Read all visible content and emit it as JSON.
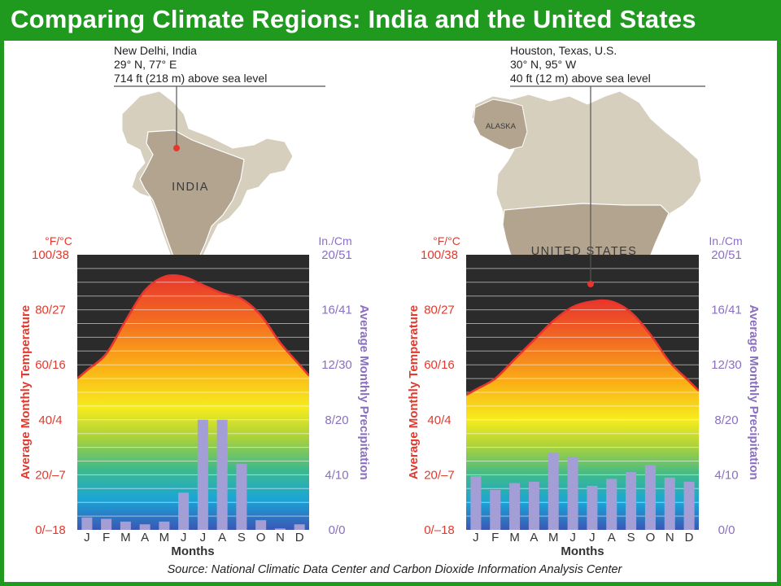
{
  "title": "Comparing Climate Regions: India and the United States",
  "source": "Source: National Climatic Data Center and Carbon Dioxide Information Analysis Center",
  "colors": {
    "title_bar": "#1f9a1f",
    "temperature": "#e8362e",
    "temperature_axis_text": "#e03a2f",
    "precipitation_axis_text": "#8a6fc0",
    "bars": "#a39fd6",
    "map_land": "#d6cfbe",
    "map_highlight": "#b2a48f",
    "plot_top": "#2b2b2b"
  },
  "chart_data": [
    {
      "type": "line",
      "panel": "india",
      "location": {
        "name": "New Delhi, India",
        "coords": "29° N, 77° E",
        "elevation": "714 ft (218 m) above sea level"
      },
      "map_label": "INDIA",
      "x": [
        "J",
        "F",
        "M",
        "A",
        "M",
        "J",
        "J",
        "A",
        "S",
        "O",
        "N",
        "D"
      ],
      "xlabel": "Months",
      "left_axis": {
        "label": "Average Monthly Temperature",
        "unit": "°F/°C",
        "ticks": [
          "0/–18",
          "20/–7",
          "40/4",
          "60/16",
          "80/27",
          "100/38"
        ],
        "ylim": [
          0,
          100
        ]
      },
      "right_axis": {
        "label": "Average Monthly Precipitation",
        "unit": "In./Cm",
        "ticks": [
          "0/0",
          "4/10",
          "8/20",
          "12/30",
          "16/41",
          "20/51"
        ],
        "ylim": [
          0,
          20
        ]
      },
      "series": [
        {
          "name": "Average Monthly Temperature",
          "axis": "left",
          "kind": "line",
          "values": [
            58,
            64,
            76,
            87,
            92,
            92,
            89,
            86,
            84,
            78,
            68,
            60
          ]
        },
        {
          "name": "Average Monthly Precipitation",
          "axis": "right",
          "kind": "bar",
          "values": [
            0.9,
            0.8,
            0.6,
            0.4,
            0.6,
            2.7,
            8.0,
            8.0,
            4.8,
            0.7,
            0.1,
            0.4
          ]
        }
      ]
    },
    {
      "type": "line",
      "panel": "united-states",
      "location": {
        "name": "Houston, Texas, U.S.",
        "coords": "30° N, 95° W",
        "elevation": "40 ft (12 m) above sea level"
      },
      "map_label": "UNITED STATES",
      "map_sublabel": "ALASKA",
      "x": [
        "J",
        "F",
        "M",
        "A",
        "M",
        "J",
        "J",
        "A",
        "S",
        "O",
        "N",
        "D"
      ],
      "xlabel": "Months",
      "left_axis": {
        "label": "Average Monthly Temperature",
        "unit": "°F/°C",
        "ticks": [
          "0/–18",
          "20/–7",
          "40/4",
          "60/16",
          "80/27",
          "100/38"
        ],
        "ylim": [
          0,
          100
        ]
      },
      "right_axis": {
        "label": "Average Monthly Precipitation",
        "unit": "In./Cm",
        "ticks": [
          "0/0",
          "4/10",
          "8/20",
          "12/30",
          "16/41",
          "20/51"
        ],
        "ylim": [
          0,
          20
        ]
      },
      "series": [
        {
          "name": "Average Monthly Temperature",
          "axis": "left",
          "kind": "line",
          "values": [
            51,
            55,
            62,
            69,
            76,
            81,
            83,
            83,
            79,
            71,
            61,
            54
          ]
        },
        {
          "name": "Average Monthly Precipitation",
          "axis": "right",
          "kind": "bar",
          "values": [
            3.9,
            2.9,
            3.4,
            3.5,
            5.6,
            5.3,
            3.2,
            3.7,
            4.2,
            4.7,
            3.8,
            3.5
          ]
        }
      ]
    }
  ]
}
